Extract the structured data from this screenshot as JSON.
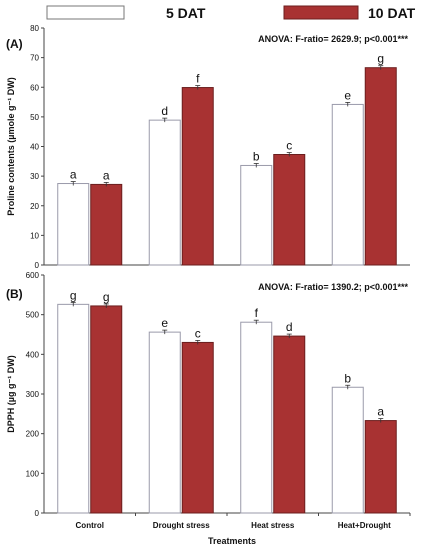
{
  "legend": {
    "items": [
      {
        "label": "5 DAT",
        "color": "#ffffff"
      },
      {
        "label": "10 DAT",
        "color": "#a83232"
      }
    ]
  },
  "colors": {
    "series_1": "#ffffff",
    "series_2": "#a83232",
    "bar_outline_1": "#9a9aaa",
    "bar_outline_2": "#6b1e1e"
  },
  "xlabel": "Treatments",
  "chart_data": [
    {
      "type": "bar",
      "panel": "(A)",
      "annotation": "ANOVA: F-ratio= 2629.9; p<0.001***",
      "ylabel": "Proline contents (µmole g⁻¹ DW)",
      "xlabel": "Treatments",
      "categories": [
        "Control",
        "Drought stress",
        "Heat stress",
        "Heat+Drought"
      ],
      "ylim": [
        0,
        80
      ],
      "yticks": [
        0,
        10,
        20,
        30,
        40,
        50,
        60,
        70,
        80
      ],
      "series": [
        {
          "name": "5 DAT",
          "values": [
            27.5,
            48.9,
            33.6,
            54.2
          ],
          "letters": [
            "a",
            "d",
            "b",
            "e"
          ]
        },
        {
          "name": "10 DAT",
          "values": [
            27.2,
            59.9,
            37.3,
            66.6
          ],
          "letters": [
            "a",
            "f",
            "c",
            "g"
          ]
        }
      ]
    },
    {
      "type": "bar",
      "panel": "(B)",
      "annotation": "ANOVA: F-ratio= 1390.2; p<0.001***",
      "ylabel": "DPPH (µg g⁻¹ DW)",
      "xlabel": "Treatments",
      "categories": [
        "Control",
        "Drought stress",
        "Heat stress",
        "Heat+Drought"
      ],
      "ylim": [
        0,
        600
      ],
      "yticks": [
        0,
        100,
        200,
        300,
        400,
        500,
        600
      ],
      "series": [
        {
          "name": "5 DAT",
          "values": [
            526,
            456,
            481,
            317
          ],
          "letters": [
            "g",
            "e",
            "f",
            "b"
          ]
        },
        {
          "name": "10 DAT",
          "values": [
            522,
            430,
            446,
            233
          ],
          "letters": [
            "g",
            "c",
            "d",
            "a"
          ]
        }
      ]
    }
  ]
}
